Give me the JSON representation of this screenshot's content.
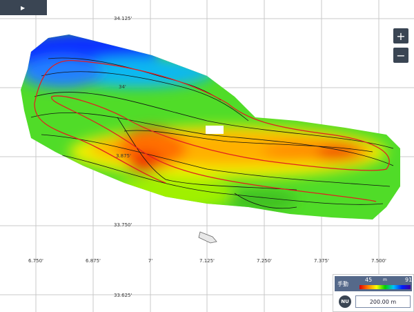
{
  "toolbar": {
    "play": "▶"
  },
  "map": {
    "lat_labels": [
      "34.125'",
      "34'",
      "3.875'",
      "33.750'",
      "33.625'"
    ],
    "lon_labels": [
      "6.750'",
      "6.875'",
      "7'",
      "7.125'",
      "7.250'",
      "7.375'",
      "7.500'"
    ]
  },
  "zoom": {
    "in": "+",
    "out": "−"
  },
  "depth_legend": {
    "mode": "手動",
    "min": "45",
    "unit": "m",
    "max": "91"
  },
  "scale": {
    "north": "NU",
    "distance": "200.00 m"
  }
}
